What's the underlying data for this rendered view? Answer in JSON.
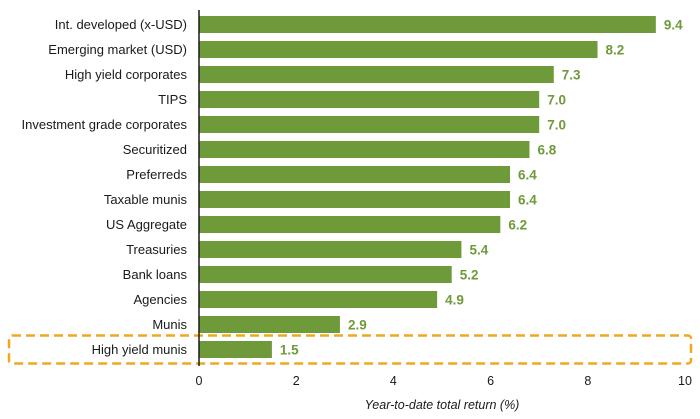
{
  "chart_data": {
    "type": "bar",
    "orientation": "horizontal",
    "categories": [
      "Int. developed (x-USD)",
      "Emerging market (USD)",
      "High yield corporates",
      "TIPS",
      "Investment grade corporates",
      "Securitized",
      "Preferreds",
      "Taxable munis",
      "US Aggregate",
      "Treasuries",
      "Bank loans",
      "Agencies",
      "Munis",
      "High yield munis"
    ],
    "values": [
      9.4,
      8.2,
      7.3,
      7.0,
      7.0,
      6.8,
      6.4,
      6.4,
      6.2,
      5.4,
      5.2,
      4.9,
      2.9,
      1.5
    ],
    "value_labels": [
      "9.4",
      "8.2",
      "7.3",
      "7.0",
      "7.0",
      "6.8",
      "6.4",
      "6.4",
      "6.2",
      "5.4",
      "5.2",
      "4.9",
      "2.9",
      "1.5"
    ],
    "xlabel": "Year-to-date total return (%)",
    "xlim": [
      0,
      10
    ],
    "xticks": [
      "0",
      "2",
      "4",
      "6",
      "8",
      "10"
    ],
    "highlighted_category": "High yield munis",
    "grid": false,
    "colors": {
      "bar": "#6f9a3a",
      "value_label": "#6f9a3a",
      "highlight_box": "#f0a81e",
      "axis": "#1a1a1a"
    }
  }
}
